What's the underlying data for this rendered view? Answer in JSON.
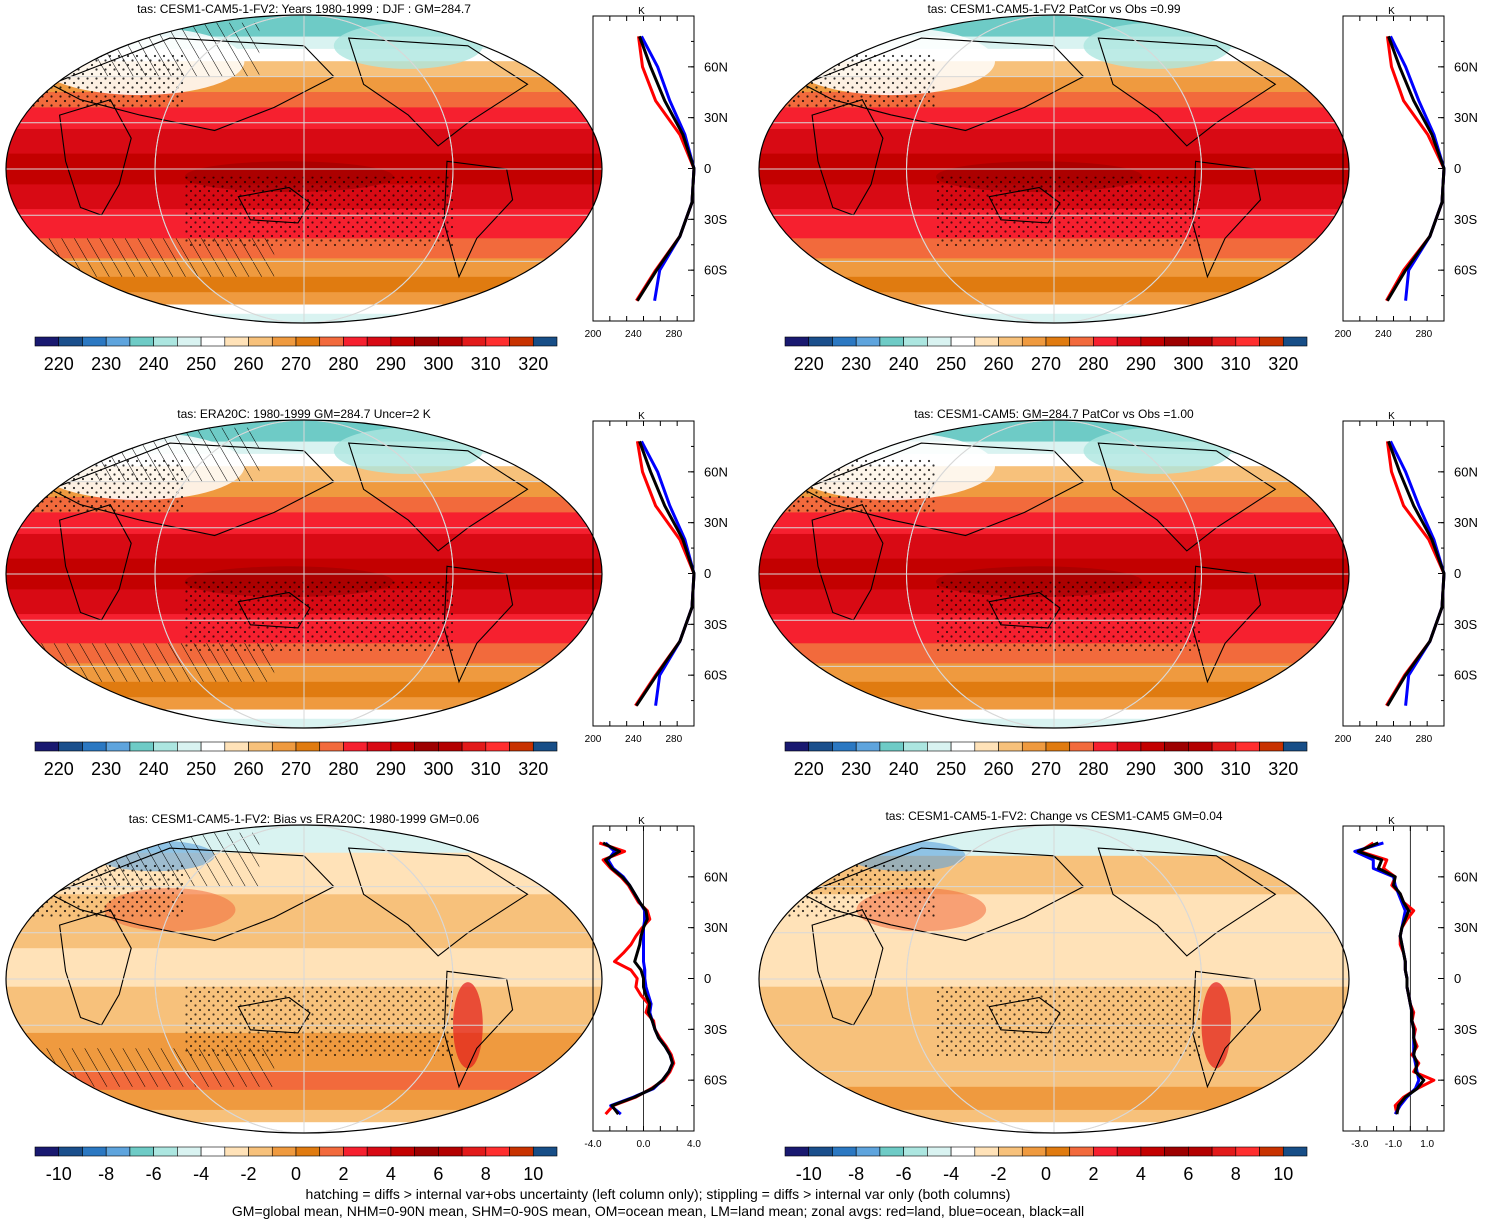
{
  "chart_data": [
    {
      "type": "heatmap",
      "title": "tas: CESM1-CAM5-1-FV2: Years 1980-1999 : DJF : GM=284.7",
      "field": "absolute",
      "hatching": true,
      "stippling": true,
      "colorbar_ticks": [
        "220",
        "230",
        "240",
        "250",
        "260",
        "270",
        "280",
        "290",
        "300",
        "310",
        "320"
      ]
    },
    {
      "type": "line",
      "title": "K",
      "xlim": [
        200,
        300
      ],
      "x_ticks": [
        "200",
        "240",
        "280"
      ],
      "y_ticks": [
        "60N",
        "30N",
        "0",
        "30S",
        "60S"
      ],
      "lat": [
        78,
        60,
        40,
        20,
        0,
        -20,
        -40,
        -60,
        -78
      ],
      "series": [
        {
          "color": "#ff0000",
          "values": [
            245,
            249,
            262,
            286,
            300,
            298,
            286,
            262,
            243
          ]
        },
        {
          "color": "#0000ff",
          "values": [
            248,
            264,
            276,
            291,
            300,
            298,
            286,
            266,
            261
          ]
        },
        {
          "color": "#000000",
          "values": [
            246,
            257,
            271,
            289,
            300,
            298,
            286,
            263,
            244
          ]
        }
      ]
    },
    {
      "type": "heatmap",
      "title": "tas: CESM1-CAM5-1-FV2 PatCor vs Obs =0.99",
      "field": "absolute",
      "hatching": false,
      "stippling": true,
      "colorbar_ticks": [
        "220",
        "230",
        "240",
        "250",
        "260",
        "270",
        "280",
        "290",
        "300",
        "310",
        "320"
      ]
    },
    {
      "type": "line",
      "title": "K",
      "xlim": [
        200,
        300
      ],
      "x_ticks": [
        "200",
        "240",
        "280"
      ],
      "y_ticks": [
        "60N",
        "30N",
        "0",
        "30S",
        "60S"
      ],
      "lat": [
        78,
        60,
        40,
        20,
        0,
        -20,
        -40,
        -60,
        -78
      ],
      "series": [
        {
          "color": "#ff0000",
          "values": [
            244,
            248,
            260,
            284,
            300,
            298,
            286,
            260,
            243
          ]
        },
        {
          "color": "#0000ff",
          "values": [
            247,
            262,
            275,
            290,
            300,
            298,
            286,
            265,
            262
          ]
        },
        {
          "color": "#000000",
          "values": [
            245,
            256,
            270,
            288,
            300,
            298,
            286,
            262,
            244
          ]
        }
      ]
    },
    {
      "type": "heatmap",
      "title": "tas: ERA20C: 1980-1999 GM=284.7 Uncer=2 K",
      "field": "absolute",
      "hatching": true,
      "stippling": true,
      "colorbar_ticks": [
        "220",
        "230",
        "240",
        "250",
        "260",
        "270",
        "280",
        "290",
        "300",
        "310",
        "320"
      ]
    },
    {
      "type": "line",
      "title": "K",
      "xlim": [
        200,
        300
      ],
      "x_ticks": [
        "200",
        "240",
        "280"
      ],
      "y_ticks": [
        "60N",
        "30N",
        "0",
        "30S",
        "60S"
      ],
      "lat": [
        78,
        60,
        40,
        20,
        0,
        -20,
        -40,
        -60,
        -78
      ],
      "series": [
        {
          "color": "#ff0000",
          "values": [
            244,
            249,
            262,
            286,
            300,
            298,
            286,
            262,
            242
          ]
        },
        {
          "color": "#0000ff",
          "values": [
            248,
            264,
            276,
            291,
            300,
            298,
            286,
            266,
            262
          ]
        },
        {
          "color": "#000000",
          "values": [
            246,
            257,
            271,
            289,
            300,
            298,
            286,
            263,
            243
          ]
        }
      ]
    },
    {
      "type": "heatmap",
      "title": "tas: CESM1-CAM5: GM=284.7 PatCor vs Obs =1.00",
      "field": "absolute",
      "hatching": false,
      "stippling": true,
      "colorbar_ticks": [
        "220",
        "230",
        "240",
        "250",
        "260",
        "270",
        "280",
        "290",
        "300",
        "310",
        "320"
      ]
    },
    {
      "type": "line",
      "title": "K",
      "xlim": [
        200,
        300
      ],
      "x_ticks": [
        "200",
        "240",
        "280"
      ],
      "y_ticks": [
        "60N",
        "30N",
        "0",
        "30S",
        "60S"
      ],
      "lat": [
        78,
        60,
        40,
        20,
        0,
        -20,
        -40,
        -60,
        -78
      ],
      "series": [
        {
          "color": "#ff0000",
          "values": [
            244,
            248,
            260,
            285,
            300,
            298,
            286,
            261,
            243
          ]
        },
        {
          "color": "#0000ff",
          "values": [
            247,
            262,
            275,
            290,
            300,
            298,
            286,
            265,
            262
          ]
        },
        {
          "color": "#000000",
          "values": [
            245,
            256,
            270,
            288,
            300,
            298,
            286,
            262,
            244
          ]
        }
      ]
    },
    {
      "type": "heatmap",
      "title": "tas: CESM1-CAM5-1-FV2: Bias vs ERA20C: 1980-1999 GM=0.06",
      "field": "difference",
      "hatching": true,
      "stippling": true,
      "colorbar_ticks": [
        "-10",
        "-8",
        "-6",
        "-4",
        "-2",
        "0",
        "2",
        "4",
        "6",
        "8",
        "10"
      ]
    },
    {
      "type": "line",
      "title": "K",
      "xlim": [
        -4,
        4
      ],
      "x_ticks": [
        "-4.0",
        "0.0",
        "4.0"
      ],
      "y_ticks": [
        "60N",
        "30N",
        "0",
        "30S",
        "60S"
      ],
      "lat": [
        80,
        75,
        70,
        65,
        60,
        55,
        50,
        45,
        40,
        35,
        30,
        25,
        20,
        15,
        10,
        5,
        0,
        -5,
        -10,
        -15,
        -20,
        -25,
        -30,
        -35,
        -40,
        -45,
        -50,
        -55,
        -60,
        -65,
        -70,
        -75,
        -80
      ],
      "series": [
        {
          "color": "#ff0000",
          "values": [
            -3.5,
            -1.5,
            -3.2,
            -2.6,
            -1.8,
            -1.2,
            -0.8,
            -0.4,
            0.3,
            0.5,
            -0.1,
            -0.6,
            -1.0,
            -1.6,
            -2.3,
            -1.0,
            -0.5,
            -0.6,
            -0.2,
            0.4,
            0.2,
            0.8,
            0.9,
            1.3,
            1.8,
            2.2,
            2.4,
            2.1,
            1.6,
            0.6,
            -0.6,
            -2.4,
            -3.0
          ]
        },
        {
          "color": "#0000ff",
          "values": [
            -3.0,
            -2.3,
            -2.8,
            -2.4,
            -1.6,
            -1.1,
            -0.7,
            -0.3,
            0.1,
            0.1,
            0.0,
            0.0,
            0.0,
            0.0,
            0.0,
            0.1,
            0.1,
            0.2,
            0.4,
            0.6,
            0.5,
            0.7,
            0.9,
            1.2,
            1.7,
            2.1,
            2.3,
            2.0,
            1.5,
            0.8,
            -0.8,
            -2.6,
            -1.8
          ]
        },
        {
          "color": "#000000",
          "values": [
            -3.2,
            -1.9,
            -3.0,
            -2.5,
            -1.7,
            -1.1,
            -0.7,
            -0.3,
            0.2,
            0.3,
            0.0,
            -0.2,
            -0.3,
            -0.5,
            -0.7,
            -0.2,
            0.0,
            0.0,
            0.2,
            0.5,
            0.4,
            0.7,
            0.9,
            1.2,
            1.7,
            2.1,
            2.3,
            2.0,
            1.5,
            0.7,
            -0.7,
            -2.5,
            -2.0
          ]
        }
      ]
    },
    {
      "type": "heatmap",
      "title": "tas: CESM1-CAM5-1-FV2: Change vs CESM1-CAM5 GM=0.04",
      "field": "difference",
      "hatching": false,
      "stippling": true,
      "colorbar_ticks": [
        "-10",
        "-8",
        "-6",
        "-4",
        "-2",
        "0",
        "2",
        "4",
        "6",
        "8",
        "10"
      ]
    },
    {
      "type": "line",
      "title": "K",
      "xlim": [
        -4,
        2
      ],
      "x_ticks": [
        "-3.0",
        "-1.0",
        "1.0"
      ],
      "y_ticks": [
        "60N",
        "30N",
        "0",
        "30S",
        "60S"
      ],
      "lat": [
        80,
        75,
        70,
        65,
        60,
        55,
        50,
        45,
        40,
        35,
        30,
        25,
        20,
        15,
        10,
        5,
        0,
        -5,
        -10,
        -15,
        -20,
        -25,
        -30,
        -35,
        -40,
        -45,
        -50,
        -55,
        -60,
        -65,
        -70,
        -75,
        -80
      ],
      "series": [
        {
          "color": "#ff0000",
          "values": [
            -2.2,
            -3.0,
            -1.4,
            -1.6,
            -0.9,
            -1.1,
            -0.6,
            -0.4,
            0.2,
            -0.2,
            -0.5,
            -0.6,
            -0.6,
            -0.4,
            -0.3,
            -0.3,
            -0.2,
            -0.2,
            -0.1,
            0.0,
            0.2,
            0.1,
            0.3,
            0.2,
            0.4,
            0.1,
            0.5,
            0.2,
            1.4,
            0.4,
            -0.4,
            -0.9,
            -0.8
          ]
        },
        {
          "color": "#0000ff",
          "values": [
            -1.6,
            -3.3,
            -2.2,
            -2.2,
            -1.0,
            -0.9,
            -0.7,
            -0.5,
            -0.3,
            -0.4,
            -0.5,
            -0.6,
            -0.5,
            -0.4,
            -0.3,
            -0.3,
            -0.2,
            -0.2,
            -0.1,
            0.0,
            0.1,
            0.1,
            0.2,
            0.2,
            0.2,
            0.2,
            0.3,
            0.4,
            0.5,
            0.3,
            -0.2,
            -0.6,
            -0.9
          ]
        },
        {
          "color": "#000000",
          "values": [
            -1.9,
            -3.1,
            -1.7,
            -1.9,
            -0.9,
            -1.0,
            -0.6,
            -0.4,
            -0.1,
            -0.3,
            -0.5,
            -0.6,
            -0.5,
            -0.4,
            -0.3,
            -0.3,
            -0.2,
            -0.2,
            -0.1,
            0.0,
            0.1,
            0.1,
            0.2,
            0.2,
            0.3,
            0.2,
            0.4,
            0.3,
            0.8,
            0.4,
            -0.3,
            -0.7,
            -0.8
          ]
        }
      ]
    }
  ],
  "colormap": [
    "#191970",
    "#1a4f8c",
    "#2b78c2",
    "#5ea4dd",
    "#6ecbc6",
    "#ace6e0",
    "#d9f3f1",
    "#ffffff",
    "#ffe2b8",
    "#f7c17b",
    "#ef9a3f",
    "#e07b10",
    "#f26a3c",
    "#f6202f",
    "#d80a14",
    "#c30000",
    "#9d0000",
    "#b30000",
    "#e21a1a",
    "#ff2f2f",
    "#c83200",
    "#174e87"
  ],
  "footnotes": [
    "hatching = diffs > internal var+obs uncertainty (left column only); stippling = diffs > internal var only (both columns)",
    "GM=global mean, NHM=0-90N mean, SHM=0-90S mean, OM=ocean mean, LM=land mean; zonal avgs: red=land, blue=ocean, black=all"
  ]
}
